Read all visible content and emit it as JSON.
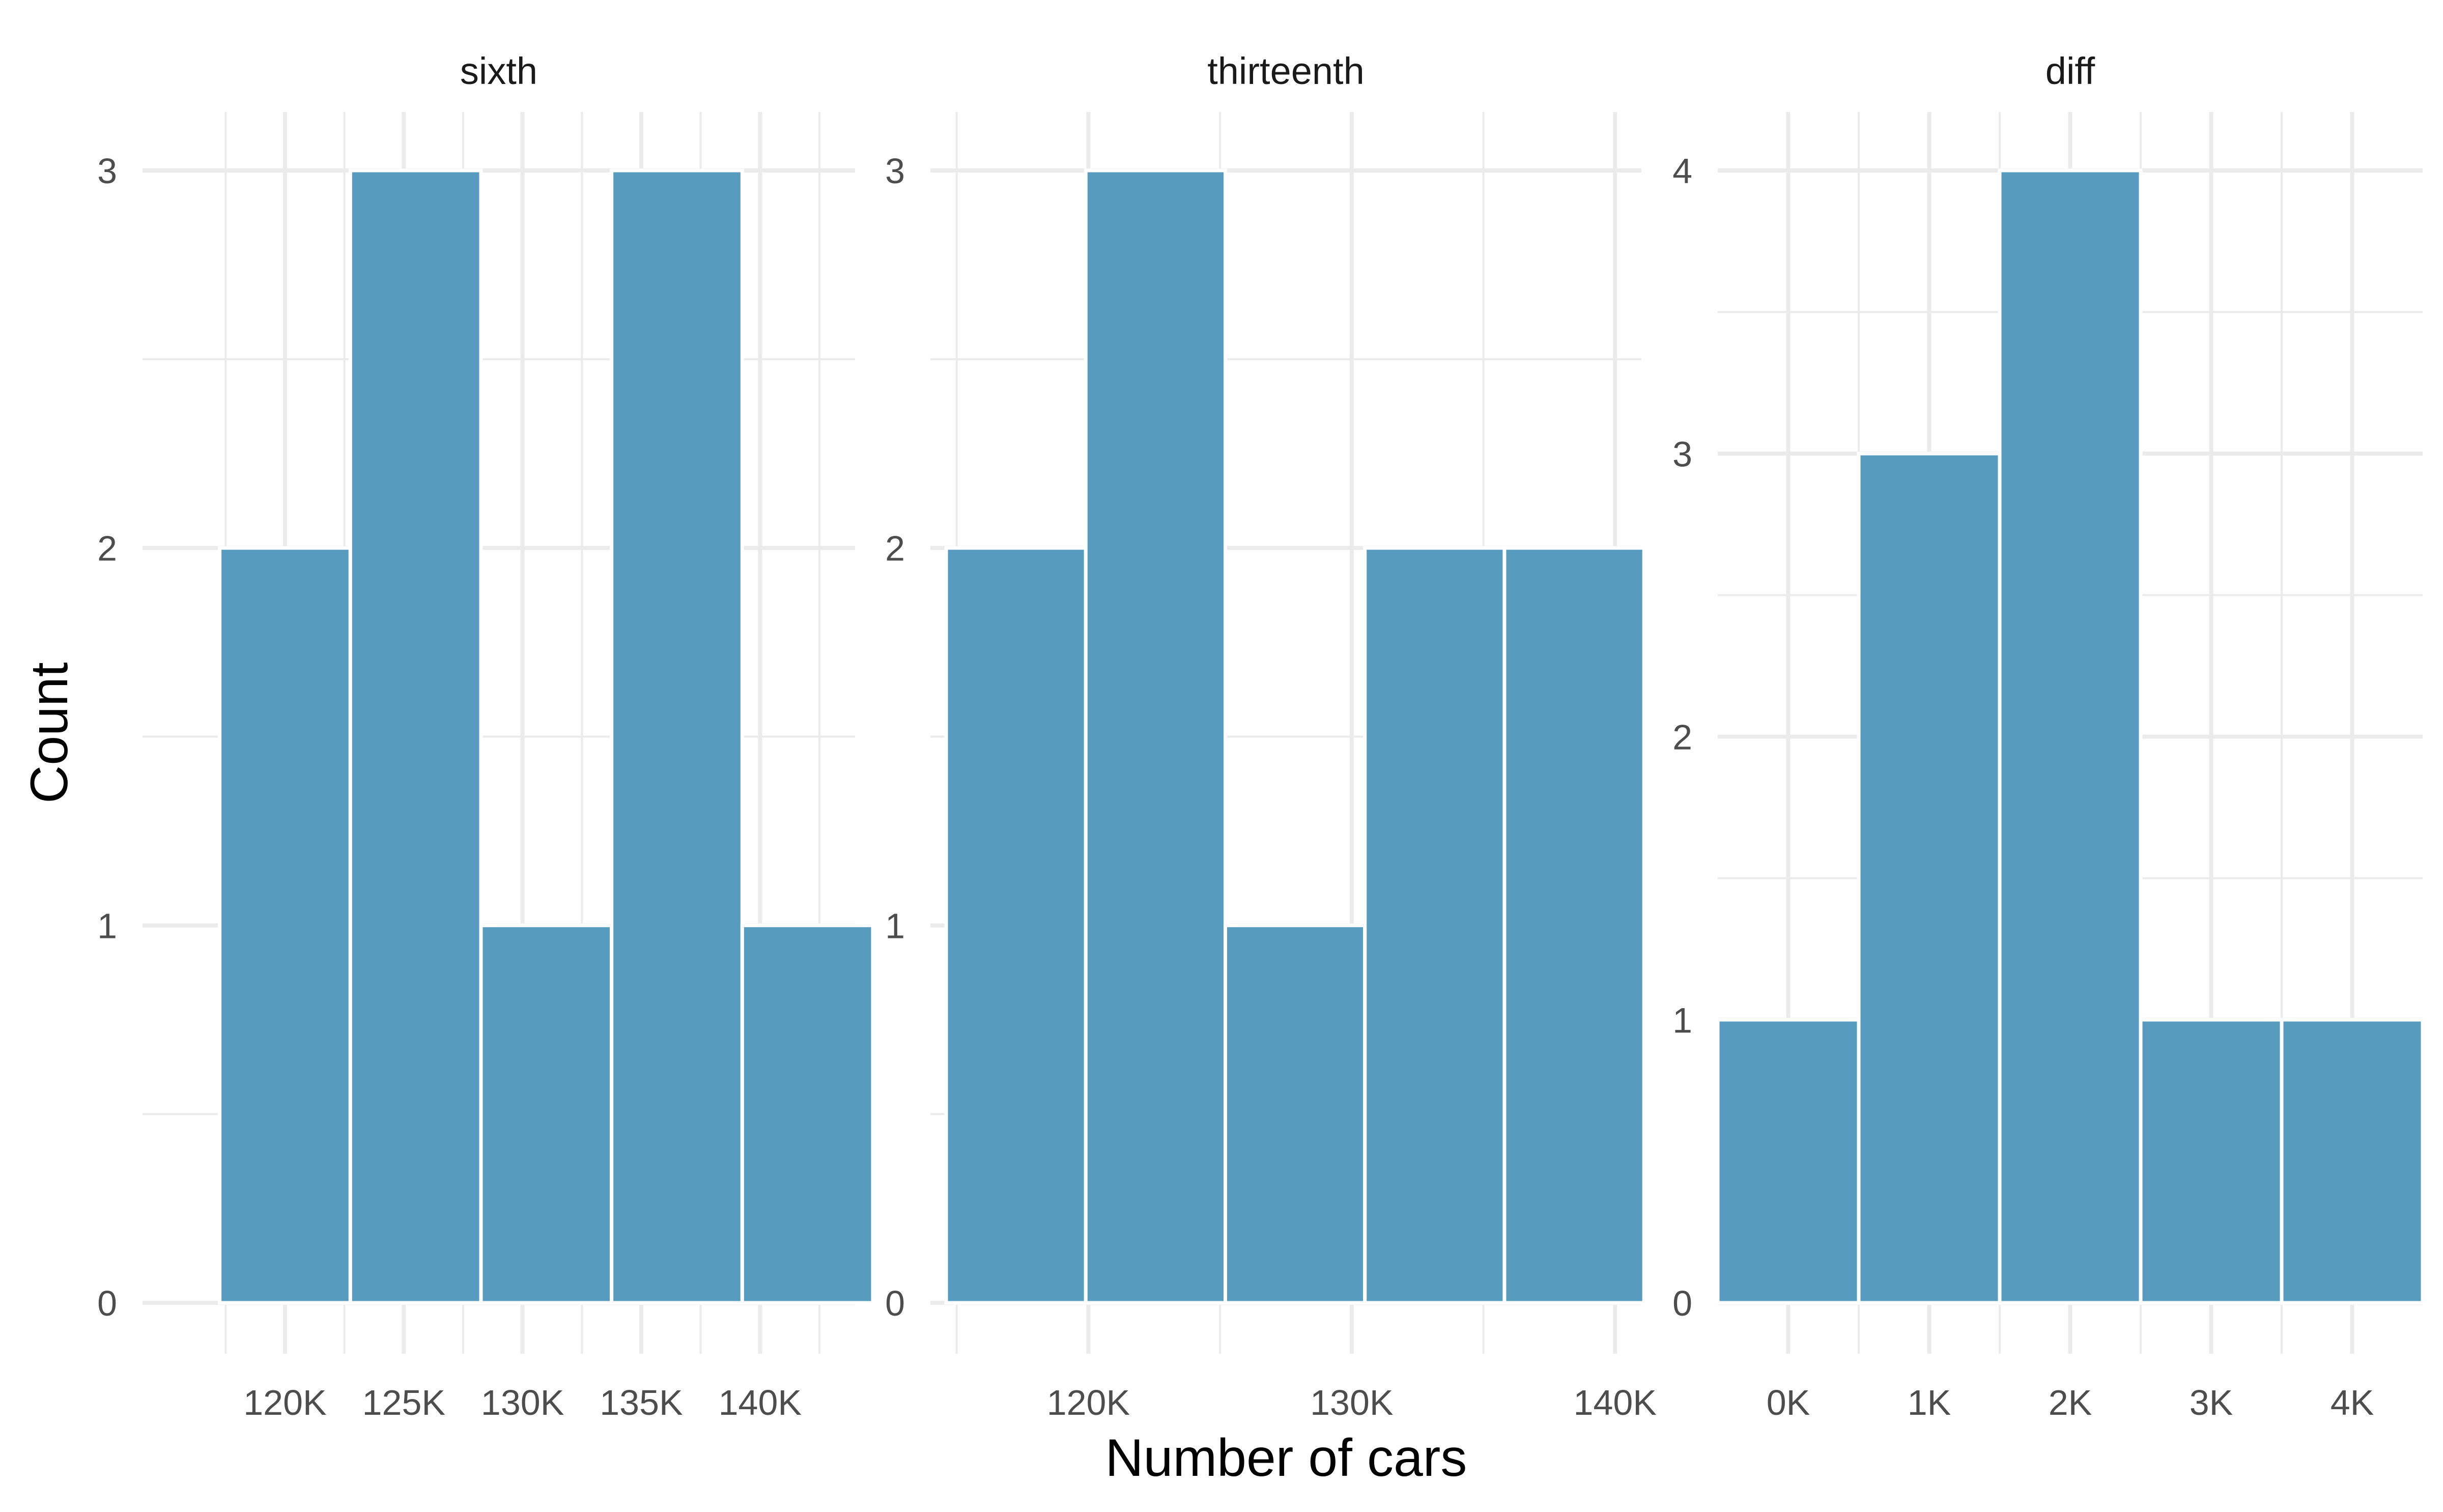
{
  "chart_data": {
    "type": "bar",
    "xlabel": "Number of cars",
    "ylabel": "Count",
    "bar_color": "#579bbf",
    "grid": true,
    "facets": [
      {
        "title": "sixth",
        "xlim": [
          114000,
          144000
        ],
        "ylim": [
          0,
          3
        ],
        "x_ticks": [
          120000,
          125000,
          130000,
          135000,
          140000
        ],
        "x_tick_labels": [
          "120K",
          "125K",
          "130K",
          "135K",
          "140K"
        ],
        "y_ticks": [
          0,
          1,
          2,
          3
        ],
        "y_tick_labels": [
          "0",
          "1",
          "2",
          "3"
        ],
        "bins": [
          {
            "x0": 117250,
            "x1": 122750,
            "count": 2
          },
          {
            "x0": 122750,
            "x1": 128250,
            "count": 3
          },
          {
            "x0": 128250,
            "x1": 133750,
            "count": 1
          },
          {
            "x0": 133750,
            "x1": 139250,
            "count": 3
          },
          {
            "x0": 139250,
            "x1": 144750,
            "count": 1
          }
        ]
      },
      {
        "title": "thirteenth",
        "xlim": [
          114000,
          141000
        ],
        "ylim": [
          0,
          3
        ],
        "x_ticks": [
          120000,
          130000,
          140000
        ],
        "x_tick_labels": [
          "120K",
          "130K",
          "140K"
        ],
        "y_ticks": [
          0,
          1,
          2,
          3
        ],
        "y_tick_labels": [
          "0",
          "1",
          "2",
          "3"
        ],
        "bins": [
          {
            "x0": 114600,
            "x1": 119900,
            "count": 2
          },
          {
            "x0": 119900,
            "x1": 125200,
            "count": 3
          },
          {
            "x0": 125200,
            "x1": 130500,
            "count": 1
          },
          {
            "x0": 130500,
            "x1": 135800,
            "count": 2
          },
          {
            "x0": 135800,
            "x1": 141100,
            "count": 2
          }
        ]
      },
      {
        "title": "diff",
        "xlim": [
          -500,
          4500
        ],
        "ylim": [
          0,
          4
        ],
        "x_ticks": [
          0,
          1000,
          2000,
          3000,
          4000
        ],
        "x_tick_labels": [
          "0K",
          "1K",
          "2K",
          "3K",
          "4K"
        ],
        "y_ticks": [
          0,
          1,
          2,
          3,
          4
        ],
        "y_tick_labels": [
          "0",
          "1",
          "2",
          "3",
          "4"
        ],
        "bins": [
          {
            "x0": -500,
            "x1": 500,
            "count": 1
          },
          {
            "x0": 500,
            "x1": 1500,
            "count": 3
          },
          {
            "x0": 1500,
            "x1": 2500,
            "count": 4
          },
          {
            "x0": 2500,
            "x1": 3500,
            "count": 1
          },
          {
            "x0": 3500,
            "x1": 4500,
            "count": 1
          }
        ]
      }
    ]
  }
}
